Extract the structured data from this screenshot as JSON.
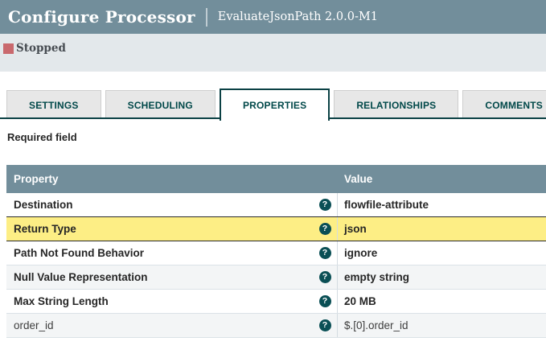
{
  "header": {
    "title": "Configure Processor",
    "subtitle": "EvaluateJsonPath 2.0.0-M1"
  },
  "status": {
    "label": "Stopped",
    "state_color": "#c9696e"
  },
  "tabs": [
    {
      "label": "SETTINGS",
      "active": false
    },
    {
      "label": "SCHEDULING",
      "active": false
    },
    {
      "label": "PROPERTIES",
      "active": true
    },
    {
      "label": "RELATIONSHIPS",
      "active": false
    },
    {
      "label": "COMMENTS",
      "active": false
    }
  ],
  "hint": {
    "required_field": "Required field"
  },
  "properties_table": {
    "columns": {
      "property": "Property",
      "value": "Value"
    },
    "help_icon_glyph": "?",
    "rows": [
      {
        "property": "Destination",
        "value": "flowfile-attribute",
        "required": true,
        "highlighted": false
      },
      {
        "property": "Return Type",
        "value": "json",
        "required": true,
        "highlighted": true
      },
      {
        "property": "Path Not Found Behavior",
        "value": "ignore",
        "required": true,
        "highlighted": false
      },
      {
        "property": "Null Value Representation",
        "value": "empty string",
        "required": true,
        "highlighted": false
      },
      {
        "property": "Max String Length",
        "value": "20 MB",
        "required": true,
        "highlighted": false
      },
      {
        "property": "order_id",
        "value": "$.[0].order_id",
        "required": false,
        "highlighted": false
      }
    ]
  },
  "colors": {
    "titlebar_bg": "#728e9b",
    "status_bg": "#e3e8eb",
    "accent_teal": "#004849",
    "table_header_bg": "#728e9b",
    "highlight_yellow": "#fdee85",
    "stripe_gray": "#f3f5f6"
  }
}
